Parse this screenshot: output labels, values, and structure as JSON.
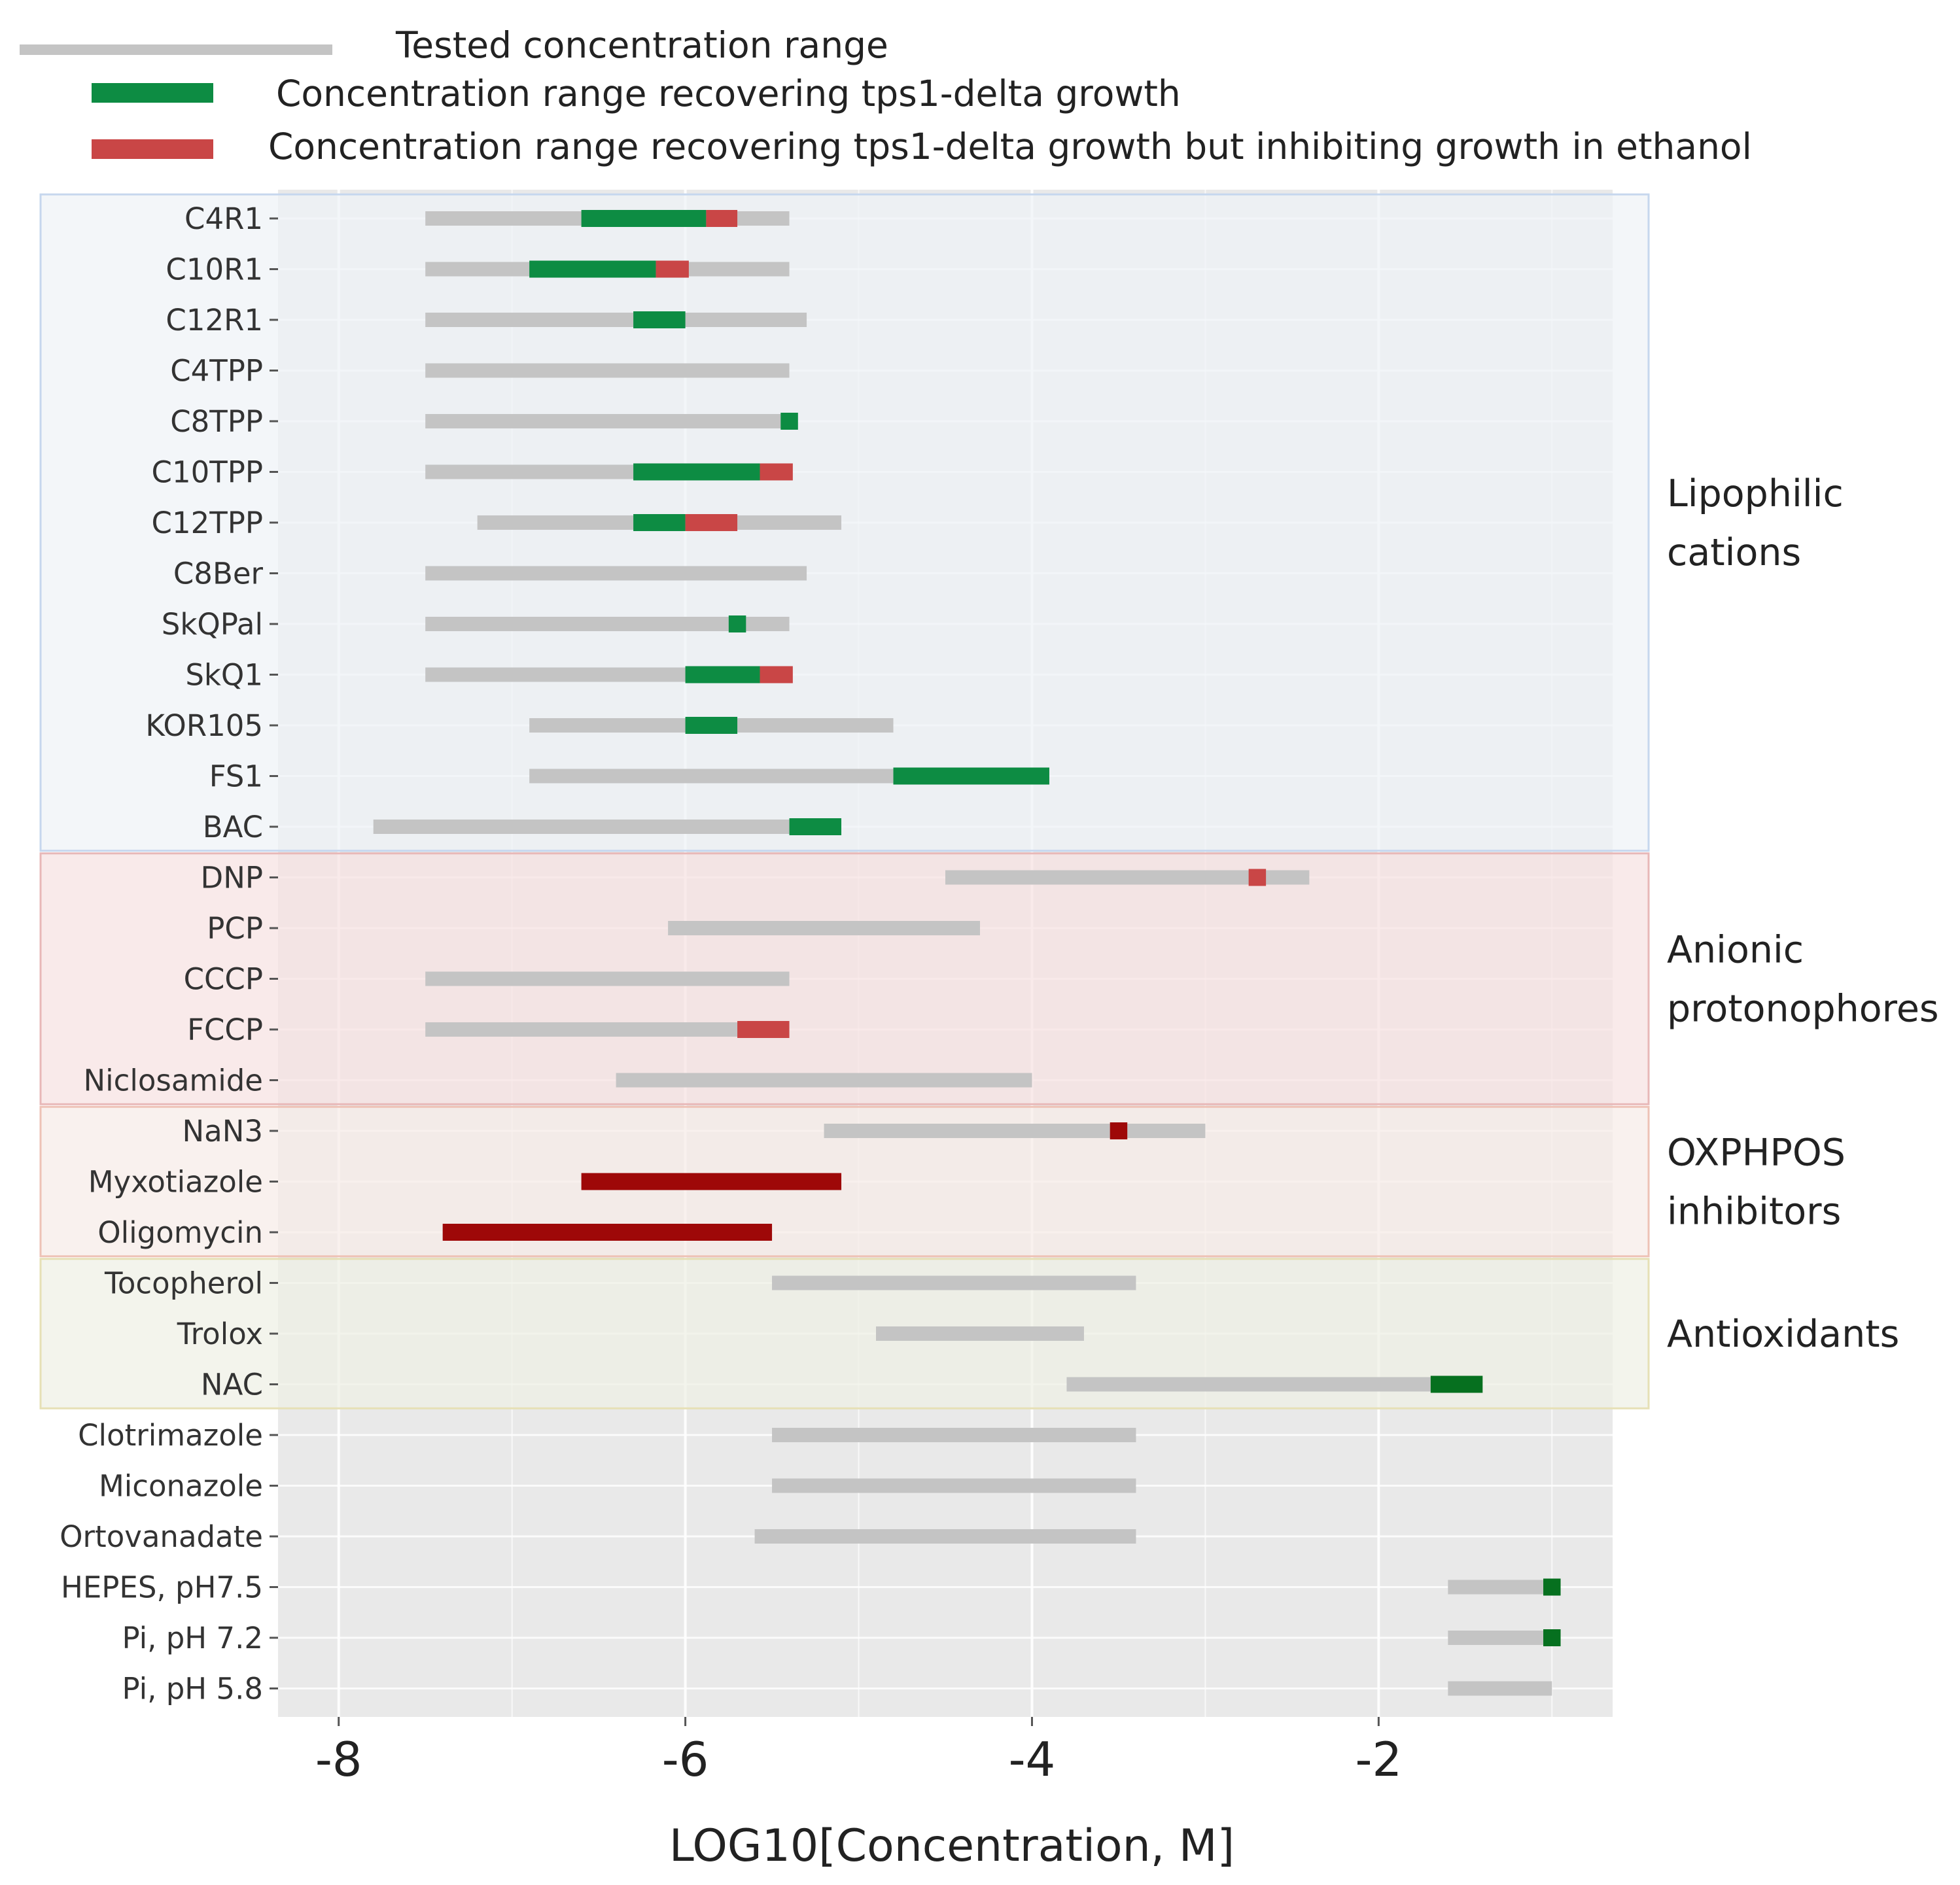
{
  "chart_data": {
    "type": "range-bar",
    "xlabel": "LOG10[Concentration, M]",
    "xlim": [
      -8.35,
      -0.65
    ],
    "xticks": [
      -8,
      -6,
      -4,
      -2
    ],
    "xtick_labels": [
      "-8",
      "-6",
      "-4",
      "-2"
    ],
    "grid": true,
    "legend": {
      "placement": "top",
      "entries": [
        {
          "key": "tested",
          "label": "Tested concentration range",
          "color": "#c4c4c4"
        },
        {
          "key": "recover",
          "label": "Concentration range recovering tps1-delta growth",
          "color": "#0d8c43"
        },
        {
          "key": "inhibit",
          "label": "Concentration range recovering tps1-delta growth but inhibiting growth in ethanol",
          "color": "#c94646"
        }
      ]
    },
    "groups": [
      {
        "label_lines": [
          "Lipophilic",
          "cations"
        ],
        "first_row": 0,
        "last_row": 12,
        "fill": "#eef2f7",
        "border": "#c6d7ee"
      },
      {
        "label_lines": [
          "Anionic",
          "protonophores"
        ],
        "first_row": 13,
        "last_row": 17,
        "fill": "#f6e2e2",
        "border": "#e8b8b8"
      },
      {
        "label_lines": [
          "OXPHPOS",
          "inhibitors"
        ],
        "first_row": 18,
        "last_row": 20,
        "fill": "#f6ebe8",
        "border": "#eec2b6"
      },
      {
        "label_lines": [
          "Antioxidants"
        ],
        "first_row": 21,
        "last_row": 23,
        "fill": "#eff0e4",
        "border": "#e6e0b6"
      }
    ],
    "rows": [
      {
        "label": "C4R1",
        "tested": [
          -7.5,
          -5.4
        ],
        "segments": [
          {
            "type": "recover",
            "range": [
              -6.6,
              -5.88
            ]
          },
          {
            "type": "inhibit",
            "range": [
              -5.88,
              -5.7
            ]
          }
        ]
      },
      {
        "label": "C10R1",
        "tested": [
          -7.5,
          -5.4
        ],
        "segments": [
          {
            "type": "recover",
            "range": [
              -6.9,
              -6.17
            ]
          },
          {
            "type": "inhibit",
            "range": [
              -6.17,
              -5.98
            ]
          }
        ]
      },
      {
        "label": "C12R1",
        "tested": [
          -7.5,
          -5.3
        ],
        "segments": [
          {
            "type": "recover",
            "range": [
              -6.3,
              -6.0
            ]
          }
        ]
      },
      {
        "label": "C4TPP",
        "tested": [
          -7.5,
          -5.4
        ],
        "segments": []
      },
      {
        "label": "C8TPP",
        "tested": [
          -7.5,
          -5.4
        ],
        "segments": [
          {
            "type": "recover",
            "range": [
              -5.45,
              -5.35
            ]
          }
        ]
      },
      {
        "label": "C10TPP",
        "tested": [
          -7.5,
          -5.4
        ],
        "segments": [
          {
            "type": "recover",
            "range": [
              -6.3,
              -5.57
            ]
          },
          {
            "type": "inhibit",
            "range": [
              -5.57,
              -5.38
            ]
          }
        ]
      },
      {
        "label": "C12TPP",
        "tested": [
          -7.2,
          -5.1
        ],
        "segments": [
          {
            "type": "recover",
            "range": [
              -6.3,
              -6.0
            ]
          },
          {
            "type": "inhibit",
            "range": [
              -6.0,
              -5.7
            ]
          }
        ]
      },
      {
        "label": "C8Ber",
        "tested": [
          -7.5,
          -5.3
        ],
        "segments": []
      },
      {
        "label": "SkQPal",
        "tested": [
          -7.5,
          -5.4
        ],
        "segments": [
          {
            "type": "recover",
            "range": [
              -5.75,
              -5.65
            ]
          }
        ]
      },
      {
        "label": "SkQ1",
        "tested": [
          -7.5,
          -5.4
        ],
        "segments": [
          {
            "type": "recover",
            "range": [
              -6.0,
              -5.57
            ]
          },
          {
            "type": "inhibit",
            "range": [
              -5.57,
              -5.38
            ]
          }
        ]
      },
      {
        "label": "KOR105",
        "tested": [
          -6.9,
          -4.8
        ],
        "segments": [
          {
            "type": "recover",
            "range": [
              -6.0,
              -5.7
            ]
          }
        ]
      },
      {
        "label": "FS1",
        "tested": [
          -6.9,
          -4.8
        ],
        "segments": [
          {
            "type": "recover",
            "range": [
              -4.8,
              -3.9
            ]
          }
        ]
      },
      {
        "label": "BAC",
        "tested": [
          -7.8,
          -5.4
        ],
        "segments": [
          {
            "type": "recover",
            "range": [
              -5.4,
              -5.1
            ]
          }
        ]
      },
      {
        "label": "DNP",
        "tested": [
          -4.5,
          -2.4
        ],
        "segments": [
          {
            "type": "inhibit",
            "range": [
              -2.75,
              -2.65
            ]
          }
        ]
      },
      {
        "label": "PCP",
        "tested": [
          -6.1,
          -4.3
        ],
        "segments": []
      },
      {
        "label": "CCCP",
        "tested": [
          -7.5,
          -5.4
        ],
        "segments": []
      },
      {
        "label": "FCCP",
        "tested": [
          -7.5,
          -5.4
        ],
        "segments": [
          {
            "type": "inhibit",
            "range": [
              -5.7,
              -5.4
            ]
          }
        ]
      },
      {
        "label": "Niclosamide",
        "tested": [
          -6.4,
          -4.0
        ],
        "segments": []
      },
      {
        "label": "NaN3",
        "tested": [
          -5.2,
          -3.0
        ],
        "segments": [
          {
            "type": "dark_red",
            "range": [
              -3.55,
              -3.45
            ]
          }
        ]
      },
      {
        "label": "Myxotiazole",
        "tested": [
          -6.6,
          -5.1
        ],
        "segments": [
          {
            "type": "dark_red",
            "range": [
              -6.6,
              -5.1
            ]
          }
        ]
      },
      {
        "label": "Oligomycin",
        "tested": [
          -7.4,
          -5.5
        ],
        "segments": [
          {
            "type": "dark_red",
            "range": [
              -7.4,
              -5.5
            ]
          }
        ]
      },
      {
        "label": "Tocopherol",
        "tested": [
          -5.5,
          -3.4
        ],
        "segments": []
      },
      {
        "label": "Trolox",
        "tested": [
          -4.9,
          -3.7
        ],
        "segments": []
      },
      {
        "label": "NAC",
        "tested": [
          -3.8,
          -1.7
        ],
        "segments": [
          {
            "type": "dark_green",
            "range": [
              -1.7,
              -1.4
            ]
          }
        ]
      },
      {
        "label": "Clotrimazole",
        "tested": [
          -5.5,
          -3.4
        ],
        "segments": []
      },
      {
        "label": "Miconazole",
        "tested": [
          -5.5,
          -3.4
        ],
        "segments": []
      },
      {
        "label": "Ortovanadate",
        "tested": [
          -5.6,
          -3.4
        ],
        "segments": []
      },
      {
        "label": "HEPES, pH7.5",
        "tested": [
          -1.6,
          -1.0
        ],
        "segments": [
          {
            "type": "dark_green",
            "range": [
              -1.05,
              -0.95
            ]
          }
        ]
      },
      {
        "label": "Pi,  pH 7.2",
        "tested": [
          -1.6,
          -1.0
        ],
        "segments": [
          {
            "type": "dark_green",
            "range": [
              -1.05,
              -0.95
            ]
          }
        ]
      },
      {
        "label": "Pi, pH 5.8",
        "tested": [
          -1.6,
          -1.0
        ],
        "segments": []
      }
    ],
    "colors": {
      "tested": "#c4c4c4",
      "recover": "#0d8c43",
      "inhibit": "#c94646",
      "dark_red": "#9e0808",
      "dark_green": "#06701f",
      "plot_bg": "#e9e9e9",
      "grid": "#ffffff"
    }
  }
}
